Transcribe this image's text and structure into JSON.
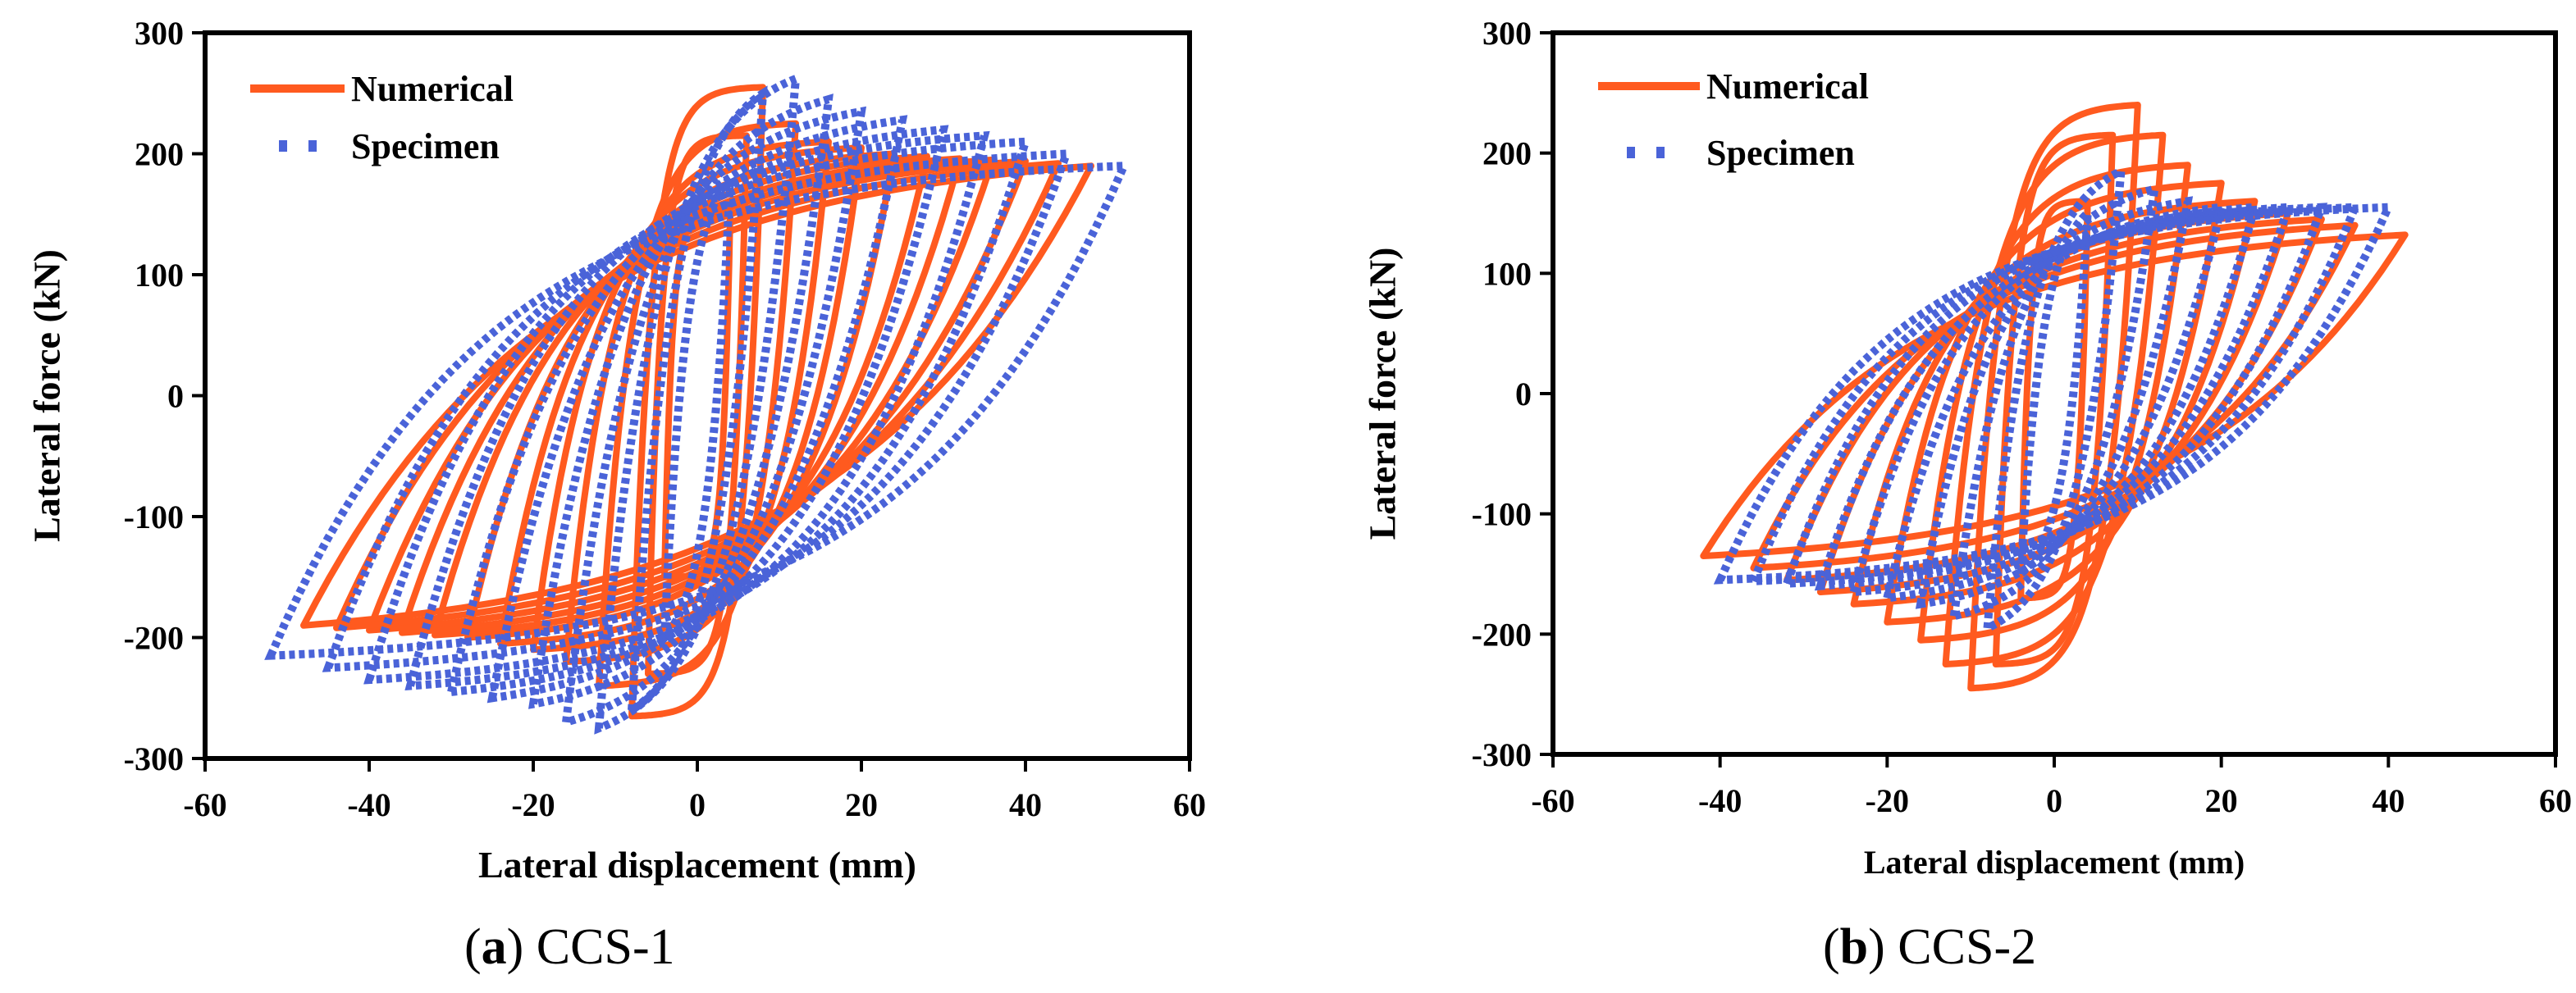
{
  "chart_data": [
    {
      "type": "line",
      "panel_letter": "a",
      "panel_name": "CCS-1",
      "xlabel": "Lateral displacement (mm)",
      "ylabel": "Lateral force (kN)",
      "xlim": [
        -60,
        60
      ],
      "ylim": [
        -300,
        300
      ],
      "x_ticks": [
        -60,
        -40,
        -20,
        0,
        20,
        40,
        60
      ],
      "y_ticks": [
        -300,
        -200,
        -100,
        0,
        100,
        200,
        300
      ],
      "x_tick_labels": [
        "-60",
        "-40",
        "-20",
        "0",
        "20",
        "40",
        "60"
      ],
      "y_tick_labels": [
        "-300",
        "-200",
        "-100",
        "0",
        "100",
        "200",
        "300"
      ],
      "legend_position": "top-left",
      "series": [
        {
          "name": "Numerical",
          "style": "line",
          "color": "#FF5A1F",
          "cycles": [
            {
              "amplitude": 4,
              "f_pos": 150,
              "f_neg": -150,
              "k": 4.5
            },
            {
              "amplitude": 6,
              "f_pos": 215,
              "f_neg": -230,
              "k": 4.0
            },
            {
              "amplitude": 8,
              "f_pos": 255,
              "f_neg": -265,
              "k": 3.5
            },
            {
              "amplitude": 12,
              "f_pos": 225,
              "f_neg": -240,
              "k": 3.0
            },
            {
              "amplitude": 16,
              "f_pos": 210,
              "f_neg": -220,
              "k": 2.7
            },
            {
              "amplitude": 20,
              "f_pos": 205,
              "f_neg": -210,
              "k": 2.5
            },
            {
              "amplitude": 24,
              "f_pos": 200,
              "f_neg": -205,
              "k": 2.3
            },
            {
              "amplitude": 28,
              "f_pos": 198,
              "f_neg": -200,
              "k": 2.1
            },
            {
              "amplitude": 32,
              "f_pos": 196,
              "f_neg": -198,
              "k": 2.0
            },
            {
              "amplitude": 36,
              "f_pos": 195,
              "f_neg": -196,
              "k": 1.9
            },
            {
              "amplitude": 40,
              "f_pos": 194,
              "f_neg": -194,
              "k": 1.8
            },
            {
              "amplitude": 44,
              "f_pos": 192,
              "f_neg": -192,
              "k": 1.7
            },
            {
              "amplitude": 48,
              "f_pos": 190,
              "f_neg": -190,
              "k": 1.6
            }
          ]
        },
        {
          "name": "Specimen",
          "style": "markers",
          "color": "#4A63D8",
          "cycles": [
            {
              "amplitude": 4,
              "f_pos": 180,
              "f_neg": -200,
              "k": 1.5
            },
            {
              "amplitude": 8,
              "f_pos": 250,
              "f_neg": -260,
              "k": 1.6
            },
            {
              "amplitude": 12,
              "f_pos": 262,
              "f_neg": -275,
              "k": 1.7
            },
            {
              "amplitude": 16,
              "f_pos": 245,
              "f_neg": -270,
              "k": 1.7
            },
            {
              "amplitude": 20,
              "f_pos": 235,
              "f_neg": -255,
              "k": 1.8
            },
            {
              "amplitude": 25,
              "f_pos": 228,
              "f_neg": -250,
              "k": 1.8
            },
            {
              "amplitude": 30,
              "f_pos": 220,
              "f_neg": -245,
              "k": 1.9
            },
            {
              "amplitude": 35,
              "f_pos": 215,
              "f_neg": -240,
              "k": 2.0
            },
            {
              "amplitude": 40,
              "f_pos": 210,
              "f_neg": -235,
              "k": 2.0
            },
            {
              "amplitude": 45,
              "f_pos": 200,
              "f_neg": -225,
              "k": 2.0
            },
            {
              "amplitude": 52,
              "f_pos": 190,
              "f_neg": -215,
              "k": 2.0
            }
          ]
        }
      ]
    },
    {
      "type": "line",
      "panel_letter": "b",
      "panel_name": "CCS-2",
      "xlabel": "Lateral displacement (mm)",
      "ylabel": "Lateral force (kN)",
      "xlim": [
        -60,
        60
      ],
      "ylim": [
        -300,
        300
      ],
      "x_ticks": [
        -60,
        -40,
        -20,
        0,
        20,
        40,
        60
      ],
      "y_ticks": [
        -300,
        -200,
        -100,
        0,
        100,
        200,
        300
      ],
      "x_tick_labels": [
        "-60",
        "-40",
        "-20",
        "0",
        "20",
        "40",
        "60"
      ],
      "y_tick_labels": [
        "-300",
        "-200",
        "-100",
        "0",
        "100",
        "200",
        "300"
      ],
      "legend_position": "top-left",
      "series": [
        {
          "name": "Numerical",
          "style": "line",
          "color": "#FF5A1F",
          "cycles": [
            {
              "amplitude": 4,
              "f_pos": 160,
              "f_neg": -170,
              "k": 4.0
            },
            {
              "amplitude": 7,
              "f_pos": 215,
              "f_neg": -225,
              "k": 3.5
            },
            {
              "amplitude": 10,
              "f_pos": 240,
              "f_neg": -245,
              "k": 3.0
            },
            {
              "amplitude": 13,
              "f_pos": 215,
              "f_neg": -225,
              "k": 2.8
            },
            {
              "amplitude": 16,
              "f_pos": 190,
              "f_neg": -205,
              "k": 2.6
            },
            {
              "amplitude": 20,
              "f_pos": 175,
              "f_neg": -190,
              "k": 2.4
            },
            {
              "amplitude": 24,
              "f_pos": 160,
              "f_neg": -175,
              "k": 2.2
            },
            {
              "amplitude": 28,
              "f_pos": 150,
              "f_neg": -165,
              "k": 2.0
            },
            {
              "amplitude": 32,
              "f_pos": 145,
              "f_neg": -155,
              "k": 1.9
            },
            {
              "amplitude": 36,
              "f_pos": 140,
              "f_neg": -145,
              "k": 1.8
            },
            {
              "amplitude": 42,
              "f_pos": 132,
              "f_neg": -135,
              "k": 1.7
            }
          ]
        },
        {
          "name": "Specimen",
          "style": "markers",
          "color": "#4A63D8",
          "cycles": [
            {
              "amplitude": 4,
              "f_pos": 150,
              "f_neg": -150,
              "k": 1.5
            },
            {
              "amplitude": 8,
              "f_pos": 185,
              "f_neg": -195,
              "k": 1.6
            },
            {
              "amplitude": 12,
              "f_pos": 170,
              "f_neg": -185,
              "k": 1.7
            },
            {
              "amplitude": 16,
              "f_pos": 160,
              "f_neg": -175,
              "k": 1.8
            },
            {
              "amplitude": 20,
              "f_pos": 155,
              "f_neg": -170,
              "k": 1.8
            },
            {
              "amplitude": 24,
              "f_pos": 155,
              "f_neg": -165,
              "k": 1.9
            },
            {
              "amplitude": 28,
              "f_pos": 155,
              "f_neg": -160,
              "k": 1.9
            },
            {
              "amplitude": 32,
              "f_pos": 155,
              "f_neg": -158,
              "k": 2.0
            },
            {
              "amplitude": 36,
              "f_pos": 155,
              "f_neg": -156,
              "k": 2.0
            },
            {
              "amplitude": 40,
              "f_pos": 155,
              "f_neg": -155,
              "k": 2.0
            }
          ]
        }
      ]
    }
  ]
}
